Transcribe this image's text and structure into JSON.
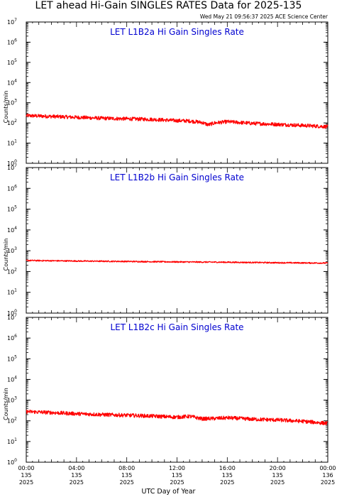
{
  "title": "LET ahead Hi-Gain SINGLES RATES Data for 2025-135",
  "timestamp": "Wed May 21 09:56:37 2025 ACE Science Center",
  "x_axis_label": "UTC Day of Year",
  "x_ticks": [
    {
      "time": "00:00",
      "doy": "135",
      "year": "2025"
    },
    {
      "time": "04:00",
      "doy": "135",
      "year": "2025"
    },
    {
      "time": "08:00",
      "doy": "135",
      "year": "2025"
    },
    {
      "time": "12:00",
      "doy": "135",
      "year": "2025"
    },
    {
      "time": "16:00",
      "doy": "135",
      "year": "2025"
    },
    {
      "time": "20:00",
      "doy": "135",
      "year": "2025"
    },
    {
      "time": "00:00",
      "doy": "136",
      "year": "2025"
    }
  ],
  "colors": {
    "series": "#ff0000",
    "panel_title": "#0000d0",
    "axes": "#000000"
  },
  "chart_data": [
    {
      "type": "line",
      "title": "LET L1B2a Hi Gain Singles Rate",
      "ylabel": "Counts/min",
      "yscale": "log",
      "ylim": [
        1,
        10000000
      ],
      "xlim_hours": [
        0,
        24
      ],
      "series": [
        {
          "x_hours": [
            0,
            2,
            4,
            6,
            8,
            10,
            12,
            13,
            14,
            14.5,
            15,
            16,
            17,
            18,
            20,
            22,
            23,
            24
          ],
          "values": [
            230,
            210,
            190,
            170,
            160,
            150,
            130,
            125,
            105,
            80,
            100,
            115,
            105,
            95,
            85,
            75,
            70,
            65
          ]
        }
      ]
    },
    {
      "type": "line",
      "title": "LET L1B2b Hi Gain Singles Rate",
      "ylabel": "Counts/min",
      "yscale": "log",
      "ylim": [
        1,
        10000000
      ],
      "xlim_hours": [
        0,
        24
      ],
      "series": [
        {
          "x_hours": [
            0,
            4,
            8,
            12,
            16,
            20,
            24
          ],
          "values": [
            340,
            320,
            305,
            290,
            280,
            265,
            255
          ]
        }
      ]
    },
    {
      "type": "line",
      "title": "LET L1B2c Hi Gain Singles Rate",
      "ylabel": "Counts/min",
      "yscale": "log",
      "ylim": [
        1,
        10000000
      ],
      "xlim_hours": [
        0,
        24
      ],
      "series": [
        {
          "x_hours": [
            0,
            2,
            4,
            6,
            8,
            10,
            12,
            13,
            14,
            15,
            16,
            18,
            20,
            22,
            24
          ],
          "values": [
            280,
            250,
            220,
            200,
            185,
            170,
            150,
            165,
            125,
            130,
            140,
            120,
            110,
            95,
            75
          ]
        }
      ]
    }
  ]
}
